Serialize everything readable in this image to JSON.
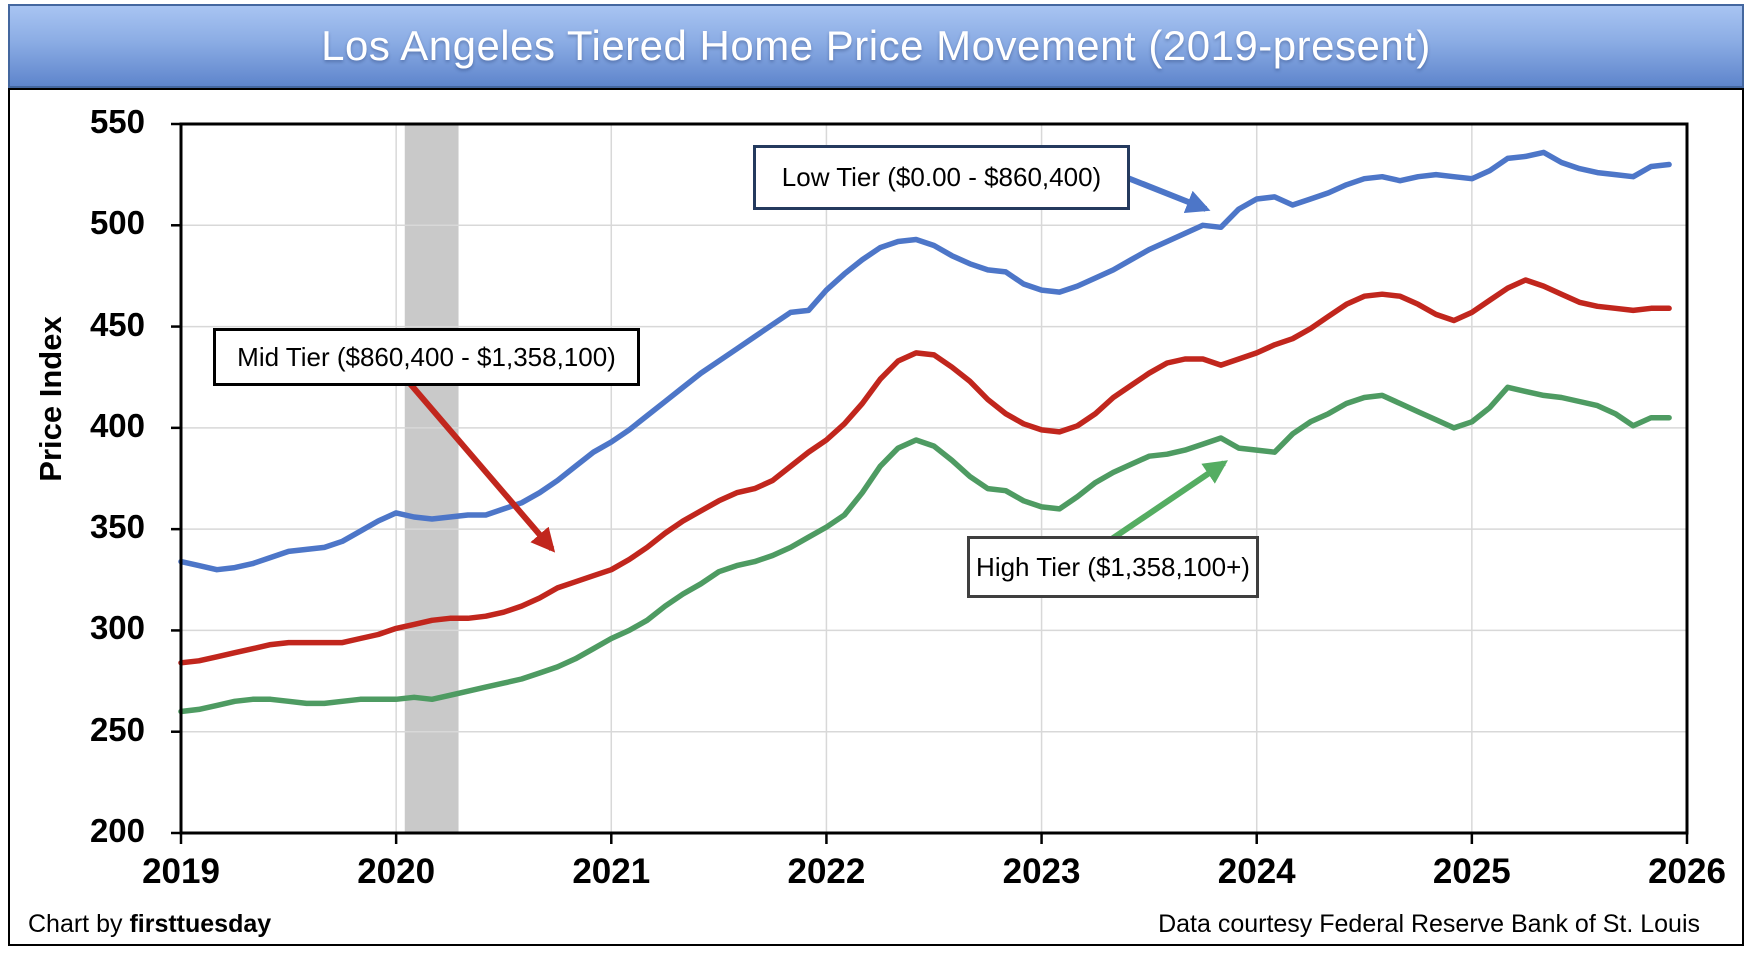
{
  "banner": {
    "title": "Los Angeles Tiered Home Price Movement (2019-present)"
  },
  "y_axis": {
    "label": "Price Index",
    "ticks": [
      550,
      500,
      450,
      400,
      350,
      300,
      250,
      200
    ]
  },
  "x_axis": {
    "ticks": [
      2019,
      2020,
      2021,
      2022,
      2023,
      2024,
      2025,
      2026
    ]
  },
  "footer": {
    "left_prefix": "Chart by ",
    "left_brand": "firsttuesday",
    "right": "Data courtesy Federal Reserve Bank of St. Louis"
  },
  "colors": {
    "low_tier_line": "#4D76C8",
    "mid_tier_line": "#C1261D",
    "high_tier_line": "#4E9B62",
    "high_tier_arrow": "#55AD62",
    "recession_band": "#C9C9C9",
    "gridline": "#D8D8D8",
    "plot_border": "#000000",
    "banner_top": "#A8C4F2",
    "banner_bottom": "#5E85CC",
    "banner_border": "#44679F",
    "low_box_border": "#243A5E",
    "mid_box_border": "#000000",
    "high_box_border": "#3F3F3F"
  },
  "chart_data": {
    "type": "line",
    "title": "Los Angeles Tiered Home Price Movement (2019-present)",
    "xlabel": "",
    "ylabel": "Price Index",
    "ylim": [
      200,
      550
    ],
    "xlim": [
      2019,
      2026
    ],
    "grid": true,
    "legend_position": "annotated-callouts",
    "frequency": "monthly",
    "x_start": "2019-01",
    "x_end": "2025-12",
    "recession_band": {
      "from": 2020.04,
      "to": 2020.29
    },
    "series": [
      {
        "name": "Low Tier ($0.00 - $860,400)",
        "color": "#4D76C8",
        "values": [
          334,
          332,
          330,
          331,
          333,
          336,
          339,
          340,
          341,
          344,
          349,
          354,
          358,
          356,
          355,
          356,
          357,
          357,
          360,
          363,
          368,
          374,
          381,
          388,
          393,
          399,
          406,
          413,
          420,
          427,
          433,
          439,
          445,
          451,
          457,
          458,
          468,
          476,
          483,
          489,
          492,
          493,
          490,
          485,
          481,
          478,
          477,
          471,
          468,
          467,
          470,
          474,
          478,
          483,
          488,
          492,
          496,
          500,
          499,
          508,
          513,
          514,
          510,
          513,
          516,
          520,
          523,
          524,
          522,
          524,
          525,
          524,
          523,
          527,
          533,
          534,
          536,
          531,
          528,
          526,
          525,
          524,
          529,
          530
        ]
      },
      {
        "name": "Mid Tier ($860,400 - $1,358,100)",
        "color": "#C1261D",
        "values": [
          284,
          285,
          287,
          289,
          291,
          293,
          294,
          294,
          294,
          294,
          296,
          298,
          301,
          303,
          305,
          306,
          306,
          307,
          309,
          312,
          316,
          321,
          324,
          327,
          330,
          335,
          341,
          348,
          354,
          359,
          364,
          368,
          370,
          374,
          381,
          388,
          394,
          402,
          412,
          424,
          433,
          437,
          436,
          430,
          423,
          414,
          407,
          402,
          399,
          398,
          401,
          407,
          415,
          421,
          427,
          432,
          434,
          434,
          431,
          434,
          437,
          441,
          444,
          449,
          455,
          461,
          465,
          466,
          465,
          461,
          456,
          453,
          457,
          463,
          469,
          473,
          470,
          466,
          462,
          460,
          459,
          458,
          459,
          459
        ]
      },
      {
        "name": "High Tier ($1,358,100+)",
        "color": "#4E9B62",
        "values": [
          260,
          261,
          263,
          265,
          266,
          266,
          265,
          264,
          264,
          265,
          266,
          266,
          266,
          267,
          266,
          268,
          270,
          272,
          274,
          276,
          279,
          282,
          286,
          291,
          296,
          300,
          305,
          312,
          318,
          323,
          329,
          332,
          334,
          337,
          341,
          346,
          351,
          357,
          368,
          381,
          390,
          394,
          391,
          384,
          376,
          370,
          369,
          364,
          361,
          360,
          366,
          373,
          378,
          382,
          386,
          387,
          389,
          392,
          395,
          390,
          389,
          388,
          397,
          403,
          407,
          412,
          415,
          416,
          412,
          408,
          404,
          400,
          403,
          410,
          420,
          418,
          416,
          415,
          413,
          411,
          407,
          401,
          405,
          405
        ]
      }
    ]
  }
}
